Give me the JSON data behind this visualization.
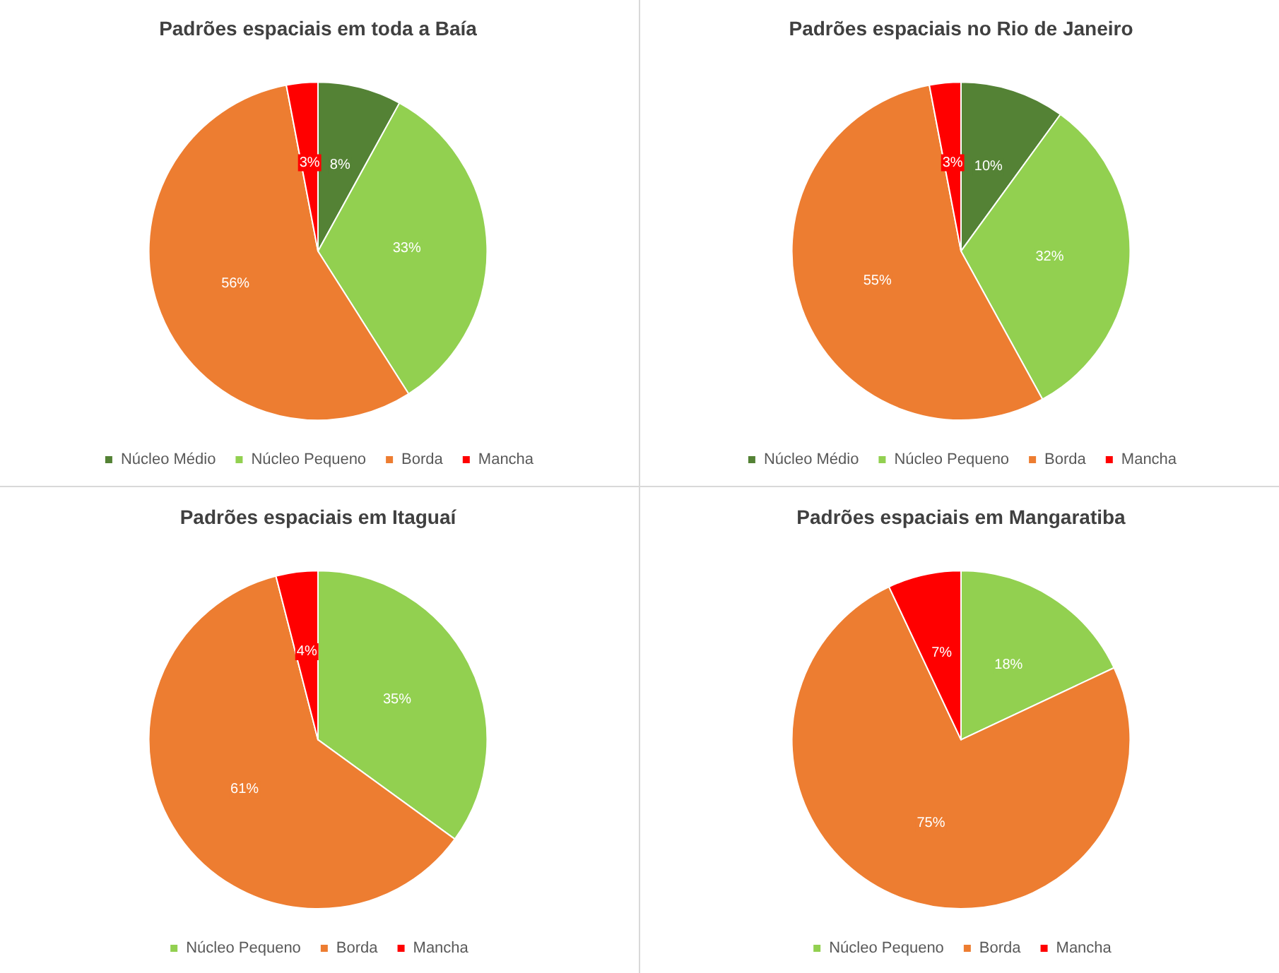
{
  "chart_data": [
    {
      "type": "pie",
      "title": "Padrões espaciais em toda a Baía",
      "categories": [
        "Núcleo Médio",
        "Núcleo Pequeno",
        "Borda",
        "Mancha"
      ],
      "values": [
        8,
        33,
        56,
        3
      ],
      "value_labels": [
        "8%",
        "33%",
        "56%",
        "3%"
      ],
      "colors": [
        "#548235",
        "#92d050",
        "#ed7d31",
        "#ff0000"
      ],
      "legend": "bottom"
    },
    {
      "type": "pie",
      "title": "Padrões espaciais no Rio de Janeiro",
      "categories": [
        "Núcleo Médio",
        "Núcleo Pequeno",
        "Borda",
        "Mancha"
      ],
      "values": [
        10,
        32,
        55,
        3
      ],
      "value_labels": [
        "10%",
        "32%",
        "55%",
        "3%"
      ],
      "colors": [
        "#548235",
        "#92d050",
        "#ed7d31",
        "#ff0000"
      ],
      "legend": "bottom"
    },
    {
      "type": "pie",
      "title": "Padrões espaciais em Itaguaí",
      "categories": [
        "Núcleo Pequeno",
        "Borda",
        "Mancha"
      ],
      "values": [
        35,
        61,
        4
      ],
      "value_labels": [
        "35%",
        "61%",
        "4%"
      ],
      "colors": [
        "#92d050",
        "#ed7d31",
        "#ff0000"
      ],
      "legend": "bottom"
    },
    {
      "type": "pie",
      "title": "Padrões espaciais em Mangaratiba",
      "categories": [
        "Núcleo Pequeno",
        "Borda",
        "Mancha"
      ],
      "values": [
        18,
        75,
        7
      ],
      "value_labels": [
        "18%",
        "75%",
        "7%"
      ],
      "colors": [
        "#92d050",
        "#ed7d31",
        "#ff0000"
      ],
      "legend": "bottom"
    }
  ]
}
